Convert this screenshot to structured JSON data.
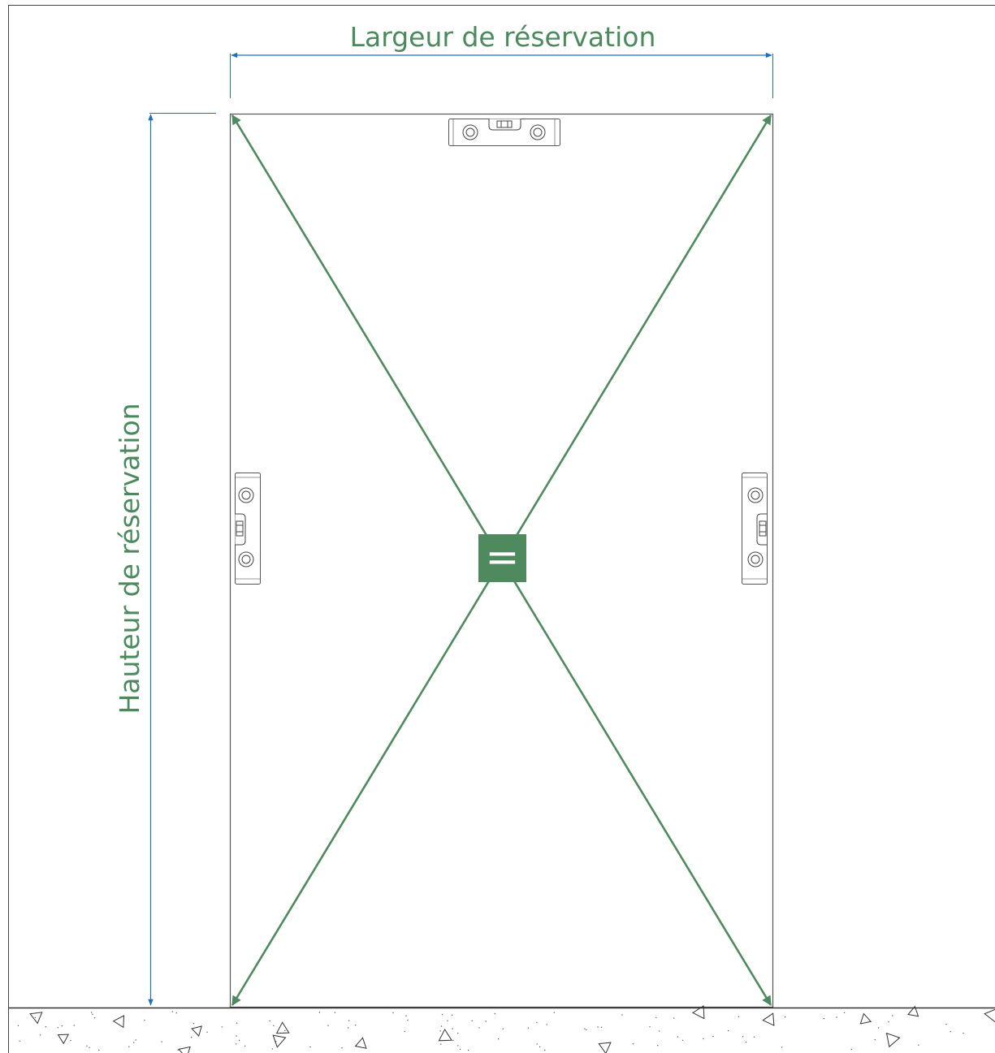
{
  "labels": {
    "width": "Largeur de réservation",
    "height": "Hauteur de réservation",
    "equal_sign": "="
  },
  "colors": {
    "dimension_line": "#1f6fbf",
    "diagonal": "#4f8a5e",
    "label_text": "#4a8a5c",
    "equal_box": "#4f8a5e",
    "outline": "#444444"
  },
  "icons": {
    "level_top": "spirit-level-icon",
    "level_left": "spirit-level-icon",
    "level_right": "spirit-level-icon",
    "floor": "concrete-floor-hatch"
  }
}
